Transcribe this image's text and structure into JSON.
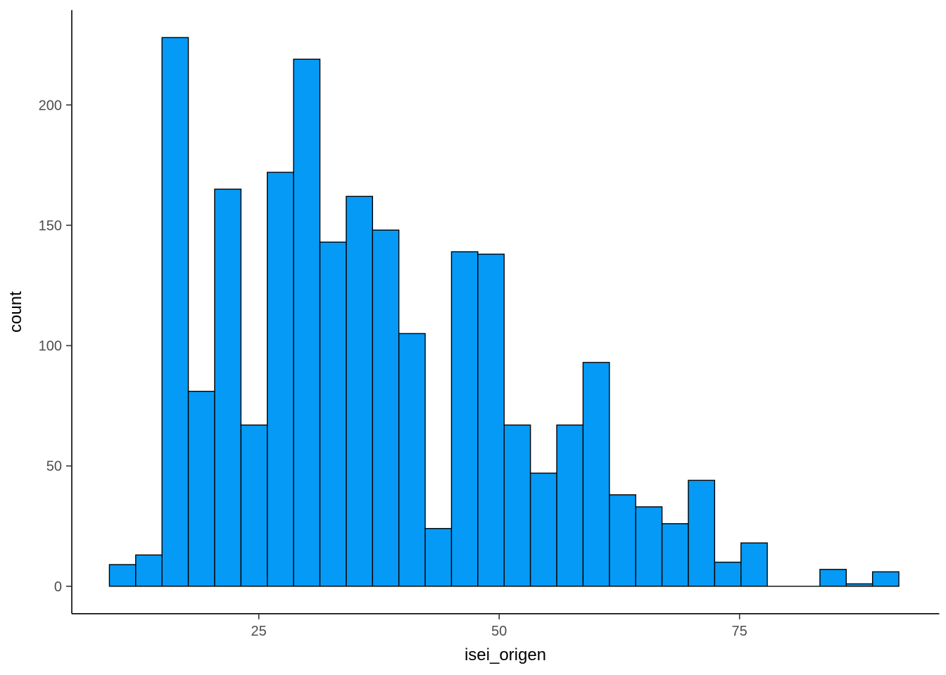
{
  "figure": {
    "background_color": "#ffffff"
  },
  "chart_data": {
    "type": "bar",
    "subtype": "histogram",
    "title": "",
    "xlabel": "isei_origen",
    "ylabel": "count",
    "x_ticks": [
      25,
      50,
      75
    ],
    "y_ticks": [
      0,
      50,
      100,
      150,
      200
    ],
    "x_range": [
      5.55,
      95.77
    ],
    "y_range": [
      -11.4,
      239.4
    ],
    "grid": "off",
    "legend": "none",
    "bin_start": 9.46,
    "bin_width": 2.737,
    "counts": [
      9,
      13,
      228,
      81,
      165,
      67,
      172,
      219,
      143,
      162,
      148,
      105,
      24,
      139,
      138,
      67,
      47,
      67,
      93,
      38,
      33,
      26,
      44,
      10,
      18,
      0,
      0,
      7,
      1,
      6
    ]
  },
  "style": {
    "bar_fill": "#059AF5",
    "bar_stroke": "#000000",
    "axis_line_color": "#000000",
    "tick_mark_color": "#333333",
    "tick_label_color": "#4d4d4d",
    "title_color": "#000000"
  }
}
